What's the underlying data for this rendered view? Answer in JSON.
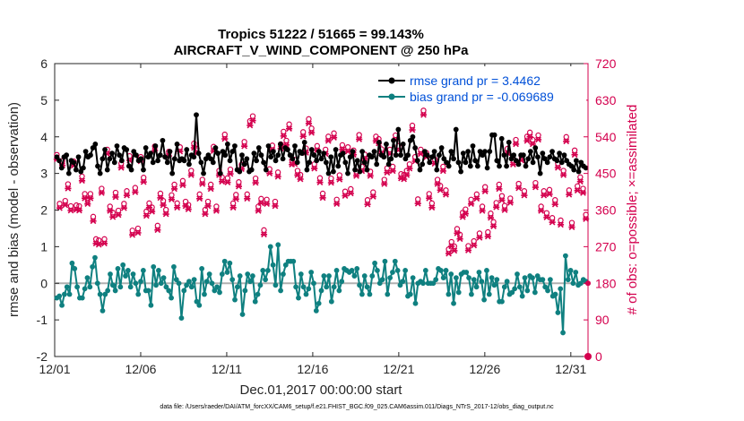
{
  "chart_data": {
    "type": "line",
    "title": "Tropics 51222 / 51665 = 99.143%",
    "subtitle": "AIRCRAFT_V_WIND_COMPONENT @ 250 hPa",
    "xlabel": "Dec.01,2017 00:00:00 start",
    "ylabel": "rmse and bias (model - observation)",
    "ylabel_right": "# of obs: o=possible; ×=assimilated",
    "footnote": "data file: /Users/raeder/DAI/ATM_forcXX/CAM6_setup/f.e21.FHIST_BGC.f09_025.CAM6assim.011/Diags_NTrS_2017-12/obs_diag_output.nc",
    "xlim": [
      0,
      31
    ],
    "ylim": [
      -2,
      6
    ],
    "ylim_right": [
      0,
      720
    ],
    "x_tick_values": [
      0,
      5,
      10,
      15,
      20,
      25,
      30
    ],
    "x_tick_labels": [
      "12/01",
      "12/06",
      "12/11",
      "12/16",
      "12/21",
      "12/26",
      "12/31"
    ],
    "y_tick_labels": [
      "-2",
      "-1",
      "0",
      "1",
      "2",
      "3",
      "4",
      "5",
      "6"
    ],
    "y_tick_labels_right": [
      "0",
      "90",
      "180",
      "270",
      "360",
      "450",
      "540",
      "630",
      "720"
    ],
    "legend_position": "top-right",
    "colors": {
      "rmse": "#000000",
      "bias": "#0f8080",
      "obs": "#d4004e",
      "zero_line": "#b0b0b0",
      "legend_text": "#0050d8"
    },
    "series": [
      {
        "name": "rmse grand pr = 3.4462",
        "axis": "left",
        "values": [
          3.45,
          3.35,
          3.15,
          3.45,
          3.5,
          3.0,
          3.35,
          3.3,
          3.1,
          3.45,
          3.05,
          3.15,
          3.6,
          3.45,
          3.5,
          3.7,
          3.8,
          3.2,
          3.0,
          3.4,
          3.65,
          3.1,
          3.4,
          3.55,
          3.3,
          3.75,
          3.5,
          3.35,
          3.7,
          3.65,
          3.2,
          3.1,
          3.6,
          3.5,
          3.35,
          3.4,
          3.1,
          3.7,
          3.45,
          3.55,
          3.3,
          3.75,
          3.35,
          3.5,
          3.9,
          3.45,
          3.3,
          3.6,
          3.0,
          3.4,
          3.8,
          3.35,
          3.4,
          3.35,
          3.65,
          3.25,
          3.5,
          3.45,
          4.6,
          3.55,
          3.3,
          3.0,
          3.4,
          3.5,
          3.4,
          3.3,
          3.7,
          3.55,
          3.0,
          3.6,
          3.5,
          3.8,
          3.35,
          3.6,
          3.75,
          3.1,
          3.05,
          3.5,
          3.25,
          3.4,
          3.05,
          3.1,
          3.55,
          3.35,
          3.7,
          3.5,
          3.3,
          3.1,
          3.75,
          3.45,
          3.6,
          3.35,
          3.5,
          3.8,
          3.4,
          3.7,
          3.65,
          3.5,
          3.4,
          3.75,
          3.3,
          3.6,
          3.55,
          3.85,
          3.1,
          3.3,
          3.65,
          3.5,
          3.35,
          3.6,
          3.4,
          3.55,
          3.3,
          3.0,
          3.45,
          3.05,
          3.65,
          3.2,
          3.5,
          3.55,
          3.3,
          3.0,
          3.45,
          3.6,
          3.1,
          3.35,
          3.05,
          3.6,
          3.3,
          3.1,
          3.5,
          3.45,
          3.6,
          3.25,
          3.85,
          3.5,
          3.45,
          3.8,
          3.25,
          3.4,
          3.9,
          3.5,
          4.2,
          3.5,
          3.8,
          3.4,
          3.5,
          3.9,
          4.0,
          3.7,
          3.35,
          3.1,
          3.25,
          3.6,
          3.5,
          3.3,
          3.45,
          3.6,
          3.1,
          3.5,
          3.7,
          3.4,
          3.3,
          3.2,
          3.6,
          3.4,
          4.2,
          3.3,
          3.05,
          3.55,
          3.3,
          3.6,
          3.2,
          3.75,
          3.35,
          3.2,
          3.6,
          3.5,
          3.6,
          3.15,
          3.6,
          4.05,
          4.05,
          3.35,
          3.2,
          3.95,
          3.5,
          3.2,
          3.85,
          3.4,
          3.5,
          3.35,
          3.25,
          3.5,
          3.5,
          3.2,
          3.4,
          3.6,
          3.3,
          3.7,
          3.45,
          3.0,
          3.55,
          3.4,
          3.3,
          3.45,
          3.6,
          3.4,
          3.35,
          3.55,
          3.3,
          3.5,
          3.35,
          3.25,
          3.2,
          3.1,
          3.35,
          3.05,
          3.3,
          3.2,
          3.15
        ]
      },
      {
        "name": "bias grand pr = -0.069689",
        "axis": "left",
        "values": [
          -0.4,
          -0.35,
          -0.6,
          -0.3,
          -0.1,
          -0.3,
          0.55,
          0.4,
          -0.1,
          -0.4,
          -0.4,
          -0.15,
          0.15,
          -0.1,
          0.45,
          0.7,
          0.0,
          -0.3,
          -0.75,
          -0.3,
          -0.2,
          0.25,
          -0.05,
          -0.2,
          0.4,
          -0.1,
          0.5,
          0.2,
          0.35,
          -0.1,
          0.25,
          0.0,
          -0.3,
          0.05,
          0.35,
          -0.2,
          -0.2,
          -0.6,
          0.45,
          -0.05,
          0.35,
          0.0,
          0.15,
          -0.1,
          -0.2,
          -0.4,
          0.45,
          0.1,
          0.0,
          -0.95,
          -0.2,
          -0.05,
          0.05,
          -0.1,
          0.1,
          -0.5,
          -0.6,
          0.4,
          -0.3,
          0.05,
          0.25,
          0.0,
          -0.2,
          -0.1,
          -0.25,
          0.25,
          0.6,
          0.3,
          0.55,
          0.1,
          -0.45,
          -0.1,
          0.2,
          -0.85,
          -0.2,
          0.25,
          0.05,
          0.2,
          -0.5,
          -0.3,
          -0.05,
          0.35,
          0.1,
          0.35,
          1.0,
          0.5,
          -0.05,
          1.05,
          -0.2,
          0.25,
          0.5,
          0.6,
          0.6,
          0.6,
          -0.1,
          -0.4,
          0.25,
          -0.1,
          -0.3,
          -0.15,
          0.3,
          0.0,
          -0.75,
          -0.55,
          -0.2,
          0.2,
          -0.1,
          0.2,
          -0.5,
          -0.1,
          0.35,
          -0.2,
          0.05,
          0.4,
          0.35,
          0.3,
          0.35,
          0.2,
          0.4,
          -0.05,
          -0.3,
          0.2,
          -0.1,
          -0.3,
          0.2,
          0.55,
          0.35,
          0.0,
          0.1,
          0.6,
          -0.3,
          0.15,
          0.3,
          0.6,
          0.35,
          -0.05,
          0.05,
          0.35,
          -0.35,
          -0.3,
          0.15,
          -0.55,
          0.0,
          0.05,
          0.0,
          0.35,
          0.0,
          0.0,
          0.0,
          0.1,
          0.4,
          0.35,
          0.15,
          0.35,
          -0.3,
          0.25,
          -0.55,
          0.15,
          -0.25,
          0.25,
          0.3,
          0.3,
          0.15,
          -0.3,
          0.1,
          -0.1,
          0.3,
          0.05,
          -0.45,
          0.35,
          -0.3,
          0.15,
          -0.05,
          0.1,
          -0.5,
          -0.5,
          -0.1,
          0.05,
          -0.3,
          -0.25,
          -0.15,
          0.25,
          -0.1,
          -0.35,
          0.15,
          -0.2,
          0.2,
          0.15,
          -0.25,
          0.2,
          0.1,
          0.1,
          -0.1,
          -0.2,
          0.1,
          -0.35,
          -0.3,
          -0.8,
          -0.15,
          -1.35,
          0.75,
          0.1,
          0.35,
          0.0,
          0.3,
          -0.05,
          0.0,
          0.1,
          0.05
        ]
      },
      {
        "name": "possible obs",
        "axis": "right",
        "marker": "circle",
        "values": [
          487,
          367,
          472,
          374,
          415,
          361,
          471,
          363,
          361,
          434,
          391,
          377,
          391,
          335,
          280,
          277,
          404,
          280,
          500,
          360,
          345,
          394,
          350,
          466,
          367,
          398,
          484,
          301,
          406,
          306,
          482,
          431,
          348,
          368,
          358,
          508,
          313,
          392,
          374,
          352,
          495,
          388,
          414,
          368,
          506,
          423,
          372,
          364,
          448,
          515,
          502,
          390,
          426,
          352,
          372,
          414,
          507,
          360,
          448,
          432,
          537,
          430,
          451,
          368,
          389,
          420,
          463,
          519,
          390,
          570,
          582,
          429,
          360,
          379,
          302,
          377,
          452,
          510,
          372,
          444,
          513,
          544,
          522,
          562,
          474,
          475,
          448,
          438,
          543,
          503,
          575,
          552,
          464,
          509,
          430,
          392,
          500,
          532,
          429,
          540,
          377,
          437,
          511,
          397,
          506,
          403,
          498,
          446,
          536,
          458,
          488,
          376,
          446,
          395,
          532,
          526,
          501,
          426,
          454,
          500,
          458,
          535,
          509,
          440,
          438,
          448,
          464,
          559,
          482,
          378,
          500,
          596,
          492,
          391,
          368,
          476,
          426,
          411,
          458,
          400,
          255,
          273,
          262,
          305,
          291,
          345,
          353,
          263,
          377,
          275,
          390,
          294,
          360,
          408,
          297,
          343,
          322,
          369,
          414,
          386,
          362,
          502,
          380,
          474,
          524,
          416,
          484,
          398,
          532,
          542,
          524,
          418,
          535,
          360,
          398,
          344,
          401,
          332,
          376,
          466,
          326,
          448,
          531,
          400,
          320,
          498,
          410,
          432,
          404,
          340
        ]
      },
      {
        "name": "assimilated obs",
        "axis": "right",
        "marker": "x",
        "values": [
          485,
          365,
          470,
          372,
          413,
          359,
          469,
          361,
          359,
          432,
          389,
          375,
          389,
          333,
          278,
          275,
          402,
          278,
          498,
          358,
          343,
          392,
          348,
          464,
          365,
          396,
          482,
          299,
          404,
          304,
          480,
          429,
          346,
          366,
          356,
          506,
          311,
          390,
          372,
          350,
          493,
          386,
          412,
          366,
          504,
          421,
          370,
          362,
          446,
          513,
          500,
          388,
          424,
          350,
          370,
          412,
          505,
          358,
          446,
          430,
          535,
          428,
          449,
          366,
          387,
          418,
          461,
          517,
          388,
          568,
          580,
          427,
          358,
          377,
          300,
          375,
          450,
          508,
          370,
          442,
          511,
          542,
          520,
          560,
          472,
          473,
          446,
          436,
          541,
          501,
          573,
          550,
          462,
          507,
          428,
          390,
          498,
          530,
          427,
          538,
          375,
          435,
          509,
          395,
          504,
          401,
          496,
          444,
          534,
          456,
          486,
          374,
          444,
          393,
          530,
          524,
          499,
          424,
          452,
          498,
          456,
          533,
          507,
          438,
          436,
          446,
          462,
          557,
          480,
          376,
          498,
          594,
          490,
          389,
          366,
          474,
          424,
          409,
          456,
          398,
          253,
          271,
          260,
          303,
          289,
          343,
          351,
          261,
          375,
          273,
          388,
          292,
          358,
          406,
          295,
          341,
          320,
          367,
          412,
          384,
          360,
          500,
          378,
          472,
          522,
          414,
          482,
          396,
          530,
          540,
          522,
          416,
          533,
          358,
          396,
          342,
          399,
          330,
          374,
          464,
          324,
          446,
          529,
          398,
          318,
          496,
          408,
          430,
          402,
          338
        ]
      }
    ]
  }
}
